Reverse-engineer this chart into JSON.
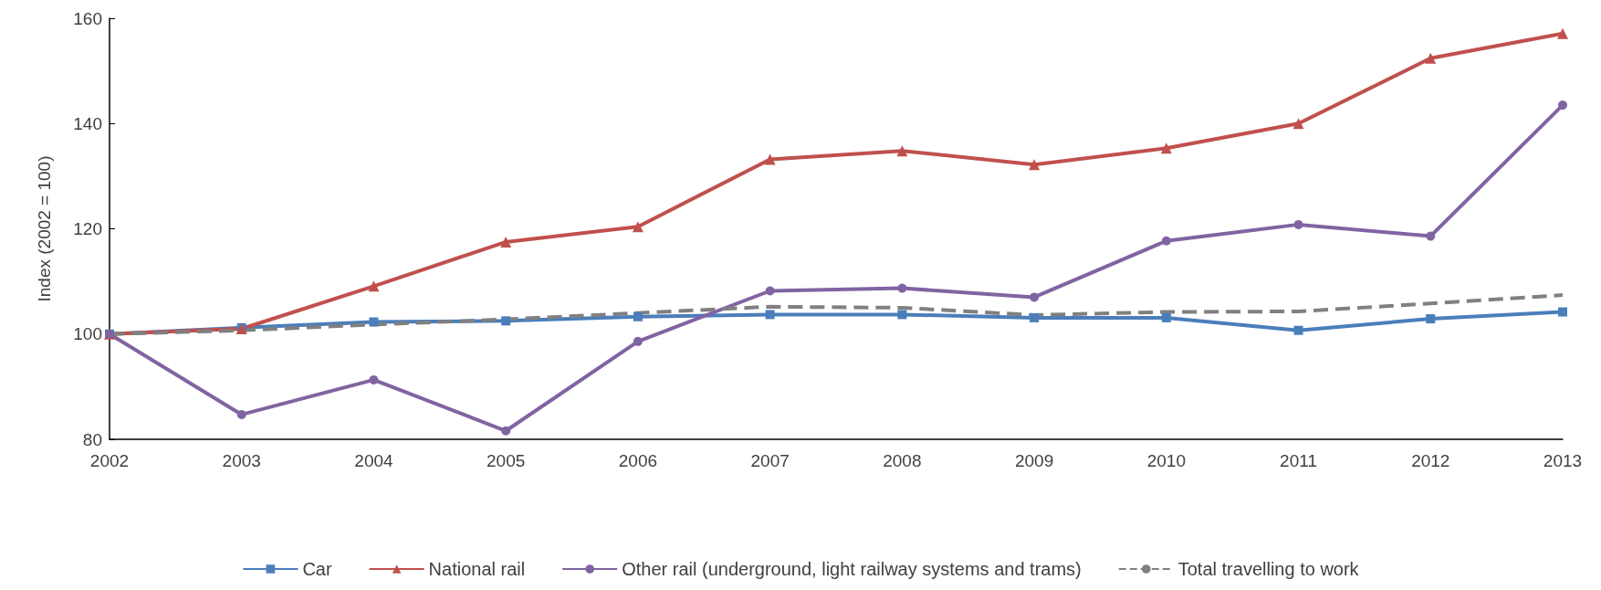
{
  "chart_data": {
    "type": "line",
    "ylabel": "Index (2002 = 100)",
    "categories": [
      "2002",
      "2003",
      "2004",
      "2005",
      "2006",
      "2007",
      "2008",
      "2009",
      "2010",
      "2011",
      "2012",
      "2013"
    ],
    "series": [
      {
        "name": "Car",
        "color": "#4a7ebb",
        "marker": "square",
        "line_style": "solid",
        "values": [
          100,
          101.2,
          102.3,
          102.5,
          103.3,
          103.7,
          103.7,
          103.1,
          103.1,
          100.7,
          102.9,
          104.2
        ]
      },
      {
        "name": "National rail",
        "color": "#c0504d",
        "marker": "triangle",
        "line_style": "solid",
        "values": [
          100,
          101.0,
          109.1,
          117.5,
          120.4,
          133.2,
          134.8,
          132.2,
          135.3,
          140.0,
          152.4,
          157.1
        ]
      },
      {
        "name": "Other rail (underground, light railway systems and trams)",
        "color": "#8064a2",
        "marker": "circle",
        "line_style": "solid",
        "values": [
          100,
          84.7,
          91.3,
          81.6,
          98.6,
          108.2,
          108.7,
          107.0,
          117.7,
          120.8,
          118.6,
          143.5
        ]
      },
      {
        "name": "Total travelling to work",
        "color": "#808080",
        "marker": "none",
        "line_style": "dashed",
        "values": [
          100,
          100.7,
          101.8,
          102.8,
          104.0,
          105.2,
          105.0,
          103.6,
          104.2,
          104.3,
          105.8,
          107.4
        ]
      }
    ],
    "ylim": [
      80,
      160
    ],
    "yticks": [
      80,
      100,
      120,
      140,
      160
    ],
    "grid": false,
    "legend": "bottom"
  }
}
